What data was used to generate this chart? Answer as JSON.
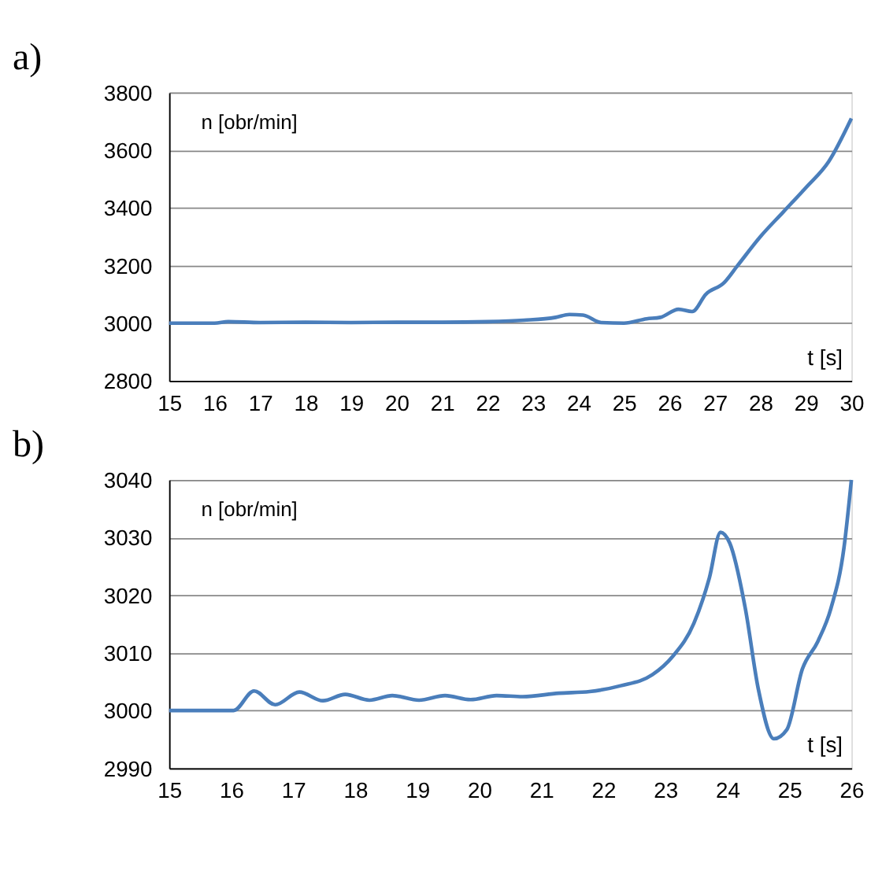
{
  "chart_data": [
    {
      "type": "line",
      "title": "a)",
      "xlabel": "t [s]",
      "ylabel": "n [obr/min]",
      "xlim": [
        15,
        30
      ],
      "xticks": [
        15,
        16,
        17,
        18,
        19,
        20,
        21,
        22,
        23,
        24,
        25,
        26,
        27,
        28,
        29,
        30
      ],
      "ylim": [
        2800,
        3800
      ],
      "yticks": [
        2800,
        3000,
        3200,
        3400,
        3600,
        3800
      ],
      "grid": "y",
      "series": [
        {
          "color": "#4a7ebb",
          "x": [
            15,
            16,
            16.3,
            17,
            18,
            19,
            20,
            21,
            22,
            22.8,
            23.5,
            23.8,
            24.1,
            24.5,
            25,
            25.5,
            25.8,
            26.2,
            26.5,
            26.8,
            27.2,
            27.5,
            28,
            28.5,
            29,
            29.5,
            30
          ],
          "values": [
            3000,
            3000,
            3005,
            3002,
            3003,
            3002,
            3003,
            3003,
            3005,
            3010,
            3020,
            3030,
            3028,
            3002,
            3000,
            3015,
            3020,
            3048,
            3040,
            3100,
            3140,
            3200,
            3300,
            3385,
            3470,
            3560,
            3710
          ]
        }
      ]
    },
    {
      "type": "line",
      "title": "b)",
      "xlabel": "t [s]",
      "ylabel": "n [obr/min]",
      "xlim": [
        15,
        26
      ],
      "xticks": [
        15,
        16,
        17,
        18,
        19,
        20,
        21,
        22,
        23,
        24,
        25,
        26
      ],
      "ylim": [
        2990,
        3040
      ],
      "yticks": [
        2990,
        3000,
        3010,
        3020,
        3030,
        3040
      ],
      "grid": "y",
      "series": [
        {
          "color": "#4a7ebb",
          "x": [
            15,
            16.04,
            16.37,
            16.71,
            17.1,
            17.48,
            17.84,
            18.23,
            18.6,
            19.03,
            19.45,
            19.86,
            20.28,
            20.7,
            21.28,
            21.78,
            22.28,
            22.79,
            23.12,
            23.46,
            23.71,
            23.89,
            24.04,
            24.29,
            24.5,
            24.75,
            24.96,
            25.21,
            25.46,
            25.67,
            25.88,
            26
          ],
          "values": [
            3000,
            3000,
            3003.4,
            3001,
            3003.2,
            3001.7,
            3002.8,
            3001.8,
            3002.6,
            3001.8,
            3002.6,
            3001.9,
            3002.6,
            3002.4,
            3003,
            3003.3,
            3004.3,
            3006.2,
            3009.4,
            3015.1,
            3023,
            3030.9,
            3029,
            3017.7,
            3003.7,
            2995.1,
            2996.7,
            3007.2,
            3012,
            3017.7,
            3028.2,
            3040
          ]
        }
      ]
    }
  ]
}
